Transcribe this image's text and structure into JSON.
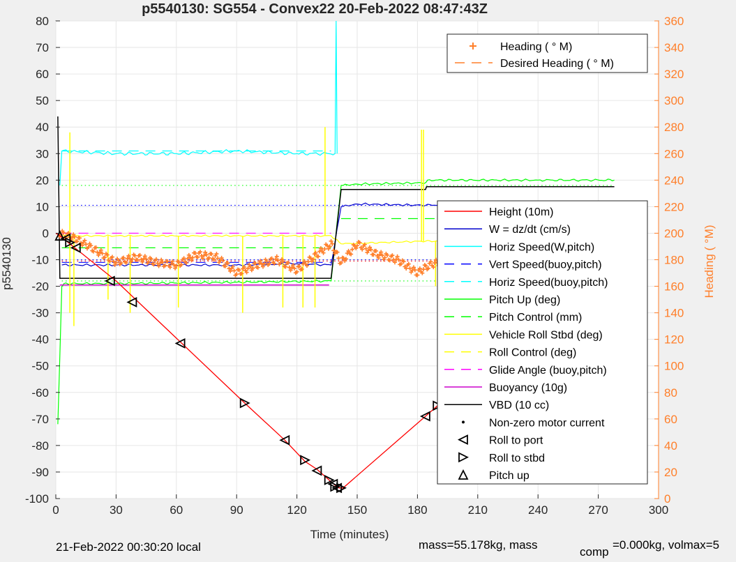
{
  "chart_data": {
    "type": "line",
    "title": "p5540130: SG554 - Convex22 20-Feb-2022 08:47:43Z",
    "xlabel": "Time (minutes)",
    "ylabel": "p5540130",
    "y2label": "Heading (  °M)",
    "xlim": [
      0,
      300
    ],
    "ylim": [
      -100,
      80
    ],
    "y2lim": [
      0,
      360
    ],
    "xticks": [
      "0",
      "30",
      "60",
      "90",
      "120",
      "150",
      "180",
      "210",
      "240",
      "270",
      "300"
    ],
    "yticks": [
      "80",
      "70",
      "60",
      "50",
      "40",
      "30",
      "20",
      "10",
      "0",
      "-10",
      "-20",
      "-30",
      "-40",
      "-50",
      "-60",
      "-70",
      "-80",
      "-90",
      "-100"
    ],
    "y2ticks": [
      "360",
      "340",
      "320",
      "300",
      "280",
      "260",
      "240",
      "220",
      "200",
      "180",
      "160",
      "140",
      "120",
      "100",
      "80",
      "60",
      "40",
      "20",
      "0"
    ],
    "footer_left": "21-Feb-2022 00:30:20 local",
    "footer_right_a": "mass=55.178kg, mass",
    "footer_right_sub": "comp",
    "footer_right_b": "=0.000kg, volmax=5",
    "colors": {
      "height": "#ff0000",
      "w": "#0000cd",
      "horiz_w": "#00ffff",
      "vert_buoy": "#0000ff",
      "pitch": "#00ff00",
      "roll": "#ffff00",
      "glide": "#ff00ff",
      "buoy": "#cc00cc",
      "vbd": "#000000",
      "heading": "#ff7f2a"
    },
    "legend_top": [
      {
        "label": "Heading (  ° M)",
        "style": "plus"
      },
      {
        "label": "Desired Heading (     ° M)",
        "style": "dash"
      }
    ],
    "legend_main": [
      {
        "label": "Height (10m)",
        "style": "solid",
        "color": "#ff0000"
      },
      {
        "label": "W = dz/dt (cm/s)",
        "style": "solid",
        "color": "#0000cd"
      },
      {
        "label": "Horiz Speed(W,pitch)",
        "style": "solid",
        "color": "#00ffff"
      },
      {
        "label": "Vert Speed(buoy,pitch)",
        "style": "dash",
        "color": "#0000ff"
      },
      {
        "label": "Horiz Speed(buoy,pitch)",
        "style": "dash",
        "color": "#00ffff"
      },
      {
        "label": "Pitch Up (deg)",
        "style": "solid",
        "color": "#00ff00"
      },
      {
        "label": "Pitch Control (mm)",
        "style": "dash",
        "color": "#00ff00"
      },
      {
        "label": "Vehicle Roll Stbd (deg)",
        "style": "solid",
        "color": "#ffff00"
      },
      {
        "label": "Roll Control (deg)",
        "style": "dash",
        "color": "#ffff00"
      },
      {
        "label": "Glide Angle (buoy,pitch)",
        "style": "dash",
        "color": "#ff00ff"
      },
      {
        "label": "Buoyancy (10g)",
        "style": "solid",
        "color": "#cc00cc"
      },
      {
        "label": "VBD (10 cc)",
        "style": "solid",
        "color": "#000000"
      },
      {
        "label": "Non-zero motor current",
        "style": "dot",
        "color": "#000000"
      },
      {
        "label": "Roll to port",
        "style": "tri-left",
        "color": "#000000"
      },
      {
        "label": "Roll to stbd",
        "style": "tri-right",
        "color": "#000000"
      },
      {
        "label": "Pitch up",
        "style": "tri-up",
        "color": "#000000"
      }
    ],
    "series": [
      {
        "key": "height",
        "x": [
          0,
          2,
          30,
          62,
          94,
          114,
          124,
          130,
          136,
          139,
          141,
          143,
          184,
          190,
          206,
          232,
          276,
          278
        ],
        "y": [
          0,
          -1,
          -18,
          -41,
          -64,
          -78,
          -86,
          -89,
          -93,
          -95,
          -96,
          -96,
          -69,
          -65,
          -54,
          -34,
          -2,
          -1
        ]
      },
      {
        "key": "w",
        "x": [
          3,
          30,
          60,
          90,
          120,
          137,
          142,
          150,
          184,
          200,
          240,
          278
        ],
        "y": [
          -12,
          -12,
          -12,
          -12,
          -11.5,
          -12,
          10,
          11,
          10.5,
          11,
          11.5,
          11.5
        ]
      },
      {
        "key": "horiz_w",
        "x": [
          2,
          3,
          30,
          60,
          90,
          120,
          139,
          139.5,
          140
        ],
        "y": [
          18,
          31,
          30,
          30,
          31,
          30,
          30,
          80,
          30
        ]
      },
      {
        "key": "pitch",
        "x": [
          1,
          3,
          4,
          30,
          90,
          137,
          142,
          150,
          184,
          185,
          240,
          278
        ],
        "y": [
          -72,
          -20,
          -19,
          -19,
          -18.5,
          -18,
          18,
          18.5,
          19,
          20,
          20,
          20
        ]
      },
      {
        "key": "roll",
        "x": [
          2,
          30,
          90,
          137,
          142,
          184,
          220,
          278
        ],
        "y": [
          -1,
          -1,
          -1,
          -1,
          -4,
          -3,
          -3,
          -3
        ]
      },
      {
        "key": "buoy",
        "x": [
          2,
          136
        ],
        "y": [
          -19.5,
          -19.5
        ]
      },
      {
        "key": "vbd",
        "x": [
          1,
          2,
          3,
          137,
          142,
          184,
          184.5,
          278
        ],
        "y": [
          44,
          -17,
          -17,
          -17,
          16.5,
          16.5,
          17.5,
          17.5
        ]
      },
      {
        "key": "heading",
        "x": [
          2,
          10,
          20,
          30,
          40,
          50,
          60,
          70,
          80,
          90,
          100,
          110,
          120,
          130,
          137,
          142,
          150,
          160,
          170,
          180,
          186,
          195,
          205,
          215,
          225,
          235,
          245,
          255,
          265,
          272,
          276,
          278
        ],
        "y": [
          200,
          196,
          187,
          178,
          182,
          178,
          176,
          184,
          182,
          170,
          176,
          180,
          172,
          184,
          192,
          178,
          192,
          184,
          180,
          170,
          176,
          180,
          184,
          188,
          183,
          180,
          185,
          190,
          194,
          202,
          205,
          125
        ]
      }
    ],
    "ref_lines": [
      {
        "style": "dotted",
        "color": "#00ff00",
        "y": 18,
        "x": [
          3,
          278
        ]
      },
      {
        "style": "dotted",
        "color": "#00ff00",
        "y": -18,
        "x": [
          3,
          278
        ]
      },
      {
        "style": "dotted",
        "color": "#0000ff",
        "y": 10.5,
        "x": [
          3,
          278
        ]
      },
      {
        "style": "dotted",
        "color": "#0000ff",
        "y": -10,
        "x": [
          3,
          278
        ]
      },
      {
        "style": "dotted",
        "color": "#ff0000",
        "y": -10.5,
        "x": [
          3,
          278
        ]
      },
      {
        "style": "dashed",
        "color": "#00ff00",
        "y": -5.5,
        "x": [
          3,
          137
        ]
      },
      {
        "style": "dashed",
        "color": "#00ff00",
        "y": 5.5,
        "x": [
          142,
          278
        ]
      },
      {
        "style": "dashed",
        "color": "#00ffff",
        "y": 31,
        "x": [
          3,
          137
        ]
      },
      {
        "style": "dashed",
        "color": "#ff00ff",
        "y": 0,
        "x": [
          3,
          137
        ]
      },
      {
        "style": "dashed",
        "color": "#0000ff",
        "y": -11,
        "x": [
          3,
          137
        ]
      }
    ],
    "roll_spikes": [
      {
        "x": 7,
        "y1": 38,
        "y2": -30
      },
      {
        "x": 9,
        "y1": -1,
        "y2": -35
      },
      {
        "x": 26,
        "y1": -1,
        "y2": -25
      },
      {
        "x": 37,
        "y1": -1,
        "y2": -30
      },
      {
        "x": 61,
        "y1": -1,
        "y2": -28
      },
      {
        "x": 93,
        "y1": -1,
        "y2": -30
      },
      {
        "x": 113,
        "y1": -1,
        "y2": -28
      },
      {
        "x": 123,
        "y1": -1,
        "y2": -28
      },
      {
        "x": 129,
        "y1": -1,
        "y2": -28
      },
      {
        "x": 134,
        "y1": 40,
        "y2": -1
      },
      {
        "x": 182,
        "y1": 39,
        "y2": -3
      },
      {
        "x": 183,
        "y1": 39,
        "y2": -3
      },
      {
        "x": 189,
        "y1": -3,
        "y2": -20
      },
      {
        "x": 204,
        "y1": -3,
        "y2": -20
      },
      {
        "x": 231,
        "y1": -3,
        "y2": -20
      }
    ],
    "markers": [
      {
        "x": 2,
        "y": -1,
        "type": "up"
      },
      {
        "x": 5,
        "y": -2,
        "type": "left"
      },
      {
        "x": 7,
        "y": -3.5,
        "type": "right"
      },
      {
        "x": 10,
        "y": -5.5,
        "type": "left"
      },
      {
        "x": 27,
        "y": -18,
        "type": "left"
      },
      {
        "x": 38,
        "y": -26,
        "type": "left"
      },
      {
        "x": 62,
        "y": -41.5,
        "type": "left"
      },
      {
        "x": 94,
        "y": -64,
        "type": "right"
      },
      {
        "x": 114,
        "y": -78,
        "type": "left"
      },
      {
        "x": 124,
        "y": -85.5,
        "type": "right"
      },
      {
        "x": 130,
        "y": -89.5,
        "type": "left"
      },
      {
        "x": 136,
        "y": -93,
        "type": "right"
      },
      {
        "x": 138,
        "y": -94.5,
        "type": "left"
      },
      {
        "x": 139,
        "y": -95.5,
        "type": "right"
      },
      {
        "x": 140,
        "y": -96,
        "type": "left"
      },
      {
        "x": 142,
        "y": -96,
        "type": "right"
      },
      {
        "x": 184,
        "y": -69,
        "type": "left"
      },
      {
        "x": 190,
        "y": -65,
        "type": "right"
      },
      {
        "x": 206,
        "y": -54,
        "type": "left"
      },
      {
        "x": 232,
        "y": -34,
        "type": "right"
      },
      {
        "x": 275,
        "y": -1.5,
        "type": "left"
      },
      {
        "x": 277,
        "y": -1.5,
        "type": "right"
      }
    ]
  }
}
